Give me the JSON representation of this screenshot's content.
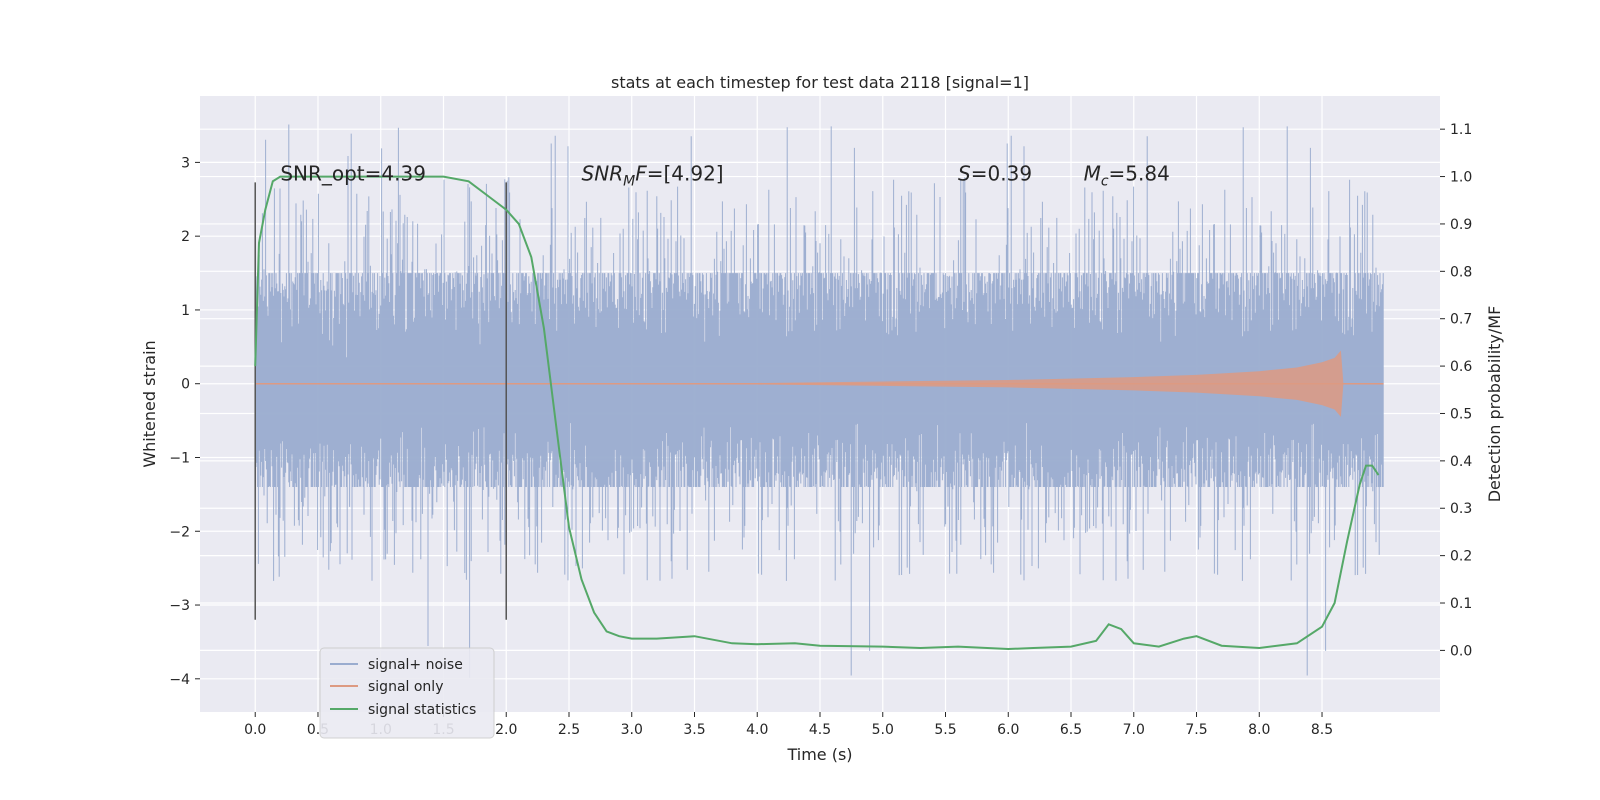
{
  "chart_data": {
    "type": "line",
    "title": "stats at each timestep for test data 2118 [signal=1]",
    "xlabel": "Time (s)",
    "ylabel": "Whitened strain",
    "ylabel_right": "Detection probability/MF",
    "xlim": [
      -0.44,
      9.44
    ],
    "ylim": [
      -4.45,
      3.9
    ],
    "ylim_right": [
      -0.13,
      1.17
    ],
    "x_ticks": [
      0.0,
      0.5,
      1.0,
      1.5,
      2.0,
      2.5,
      3.0,
      3.5,
      4.0,
      4.5,
      5.0,
      5.5,
      6.0,
      6.5,
      7.0,
      7.5,
      8.0,
      8.5
    ],
    "x_tick_labels": [
      "0.0",
      "0.5",
      "1.0",
      "1.5",
      "2.0",
      "2.5",
      "3.0",
      "3.5",
      "4.0",
      "4.5",
      "5.0",
      "5.5",
      "6.0",
      "6.5",
      "7.0",
      "7.5",
      "8.0",
      "8.5"
    ],
    "y_ticks": [
      -4,
      -3,
      -2,
      -1,
      0,
      1,
      2,
      3
    ],
    "y_tick_labels": [
      "−4",
      "−3",
      "−2",
      "−1",
      "0",
      "1",
      "2",
      "3"
    ],
    "y_ticks_right": [
      0.0,
      0.1,
      0.2,
      0.3,
      0.4,
      0.5,
      0.6,
      0.7,
      0.8,
      0.9,
      1.0,
      1.1
    ],
    "y_tick_labels_right": [
      "0.0",
      "0.1",
      "0.2",
      "0.3",
      "0.4",
      "0.5",
      "0.6",
      "0.7",
      "0.8",
      "0.9",
      "1.0",
      "1.1"
    ],
    "grid": true,
    "legend_placement": "lower-left",
    "colors": {
      "background": "#eaeaf2",
      "grid": "#ffffff",
      "noise": "#9aaccf",
      "signal": "#dd9a82",
      "statistics": "#55a868",
      "vline": "#555555"
    },
    "series": [
      {
        "name": "signal+ noise",
        "note_values": "dense noise band",
        "band": {
          "x_start": 0.0,
          "x_end": 8.99,
          "typical_min": -1.4,
          "typical_max": 1.5,
          "extreme_min": -4.0,
          "extreme_max": 3.55
        }
      },
      {
        "name": "signal only",
        "envelope_x": [
          0.0,
          3.0,
          4.0,
          5.0,
          6.0,
          7.0,
          7.5,
          8.0,
          8.3,
          8.5,
          8.6,
          8.65,
          8.67,
          8.99
        ],
        "envelope_amp": [
          0.0,
          0.0,
          0.01,
          0.03,
          0.05,
          0.09,
          0.12,
          0.17,
          0.22,
          0.29,
          0.35,
          0.45,
          0.0,
          0.0
        ]
      },
      {
        "name": "signal statistics",
        "x": [
          0.0,
          0.03,
          0.08,
          0.14,
          0.2,
          0.3,
          0.5,
          0.8,
          1.0,
          1.3,
          1.5,
          1.7,
          1.85,
          2.0,
          2.1,
          2.2,
          2.3,
          2.4,
          2.5,
          2.6,
          2.7,
          2.8,
          2.9,
          3.0,
          3.2,
          3.5,
          3.8,
          4.0,
          4.3,
          4.5,
          5.0,
          5.3,
          5.6,
          6.0,
          6.2,
          6.5,
          6.7,
          6.8,
          6.9,
          7.0,
          7.2,
          7.4,
          7.5,
          7.7,
          8.0,
          8.3,
          8.5,
          8.6,
          8.7,
          8.8,
          8.85,
          8.9,
          8.95
        ],
        "y": [
          0.6,
          0.86,
          0.93,
          0.99,
          1.0,
          1.0,
          1.0,
          1.0,
          1.0,
          1.0,
          1.0,
          0.99,
          0.96,
          0.93,
          0.9,
          0.83,
          0.68,
          0.47,
          0.26,
          0.15,
          0.08,
          0.04,
          0.03,
          0.025,
          0.025,
          0.03,
          0.015,
          0.013,
          0.015,
          0.01,
          0.008,
          0.005,
          0.008,
          0.003,
          0.005,
          0.008,
          0.02,
          0.055,
          0.045,
          0.015,
          0.008,
          0.025,
          0.03,
          0.01,
          0.005,
          0.015,
          0.05,
          0.1,
          0.23,
          0.35,
          0.39,
          0.39,
          0.37
        ]
      }
    ],
    "vlines": [
      {
        "x": 0.0,
        "y_from": -3.2,
        "y_to": 2.73
      },
      {
        "x": 2.0,
        "y_from": -3.2,
        "y_to": 2.73
      }
    ],
    "annotations": [
      {
        "id": "snr-opt",
        "plain": "SNR_opt=4.39",
        "x": 0.2,
        "y": 2.85
      },
      {
        "id": "snr-mf",
        "main": "SNR",
        "sub": "M",
        "rest": "F=[4.92]",
        "x": 2.6,
        "y": 2.85
      },
      {
        "id": "s-val",
        "main": "S",
        "rest": "=0.39",
        "x": 5.6,
        "y": 2.85
      },
      {
        "id": "mc-val",
        "main": "M",
        "sub": "c",
        "rest": "=5.84",
        "x": 6.6,
        "y": 2.85
      }
    ]
  }
}
